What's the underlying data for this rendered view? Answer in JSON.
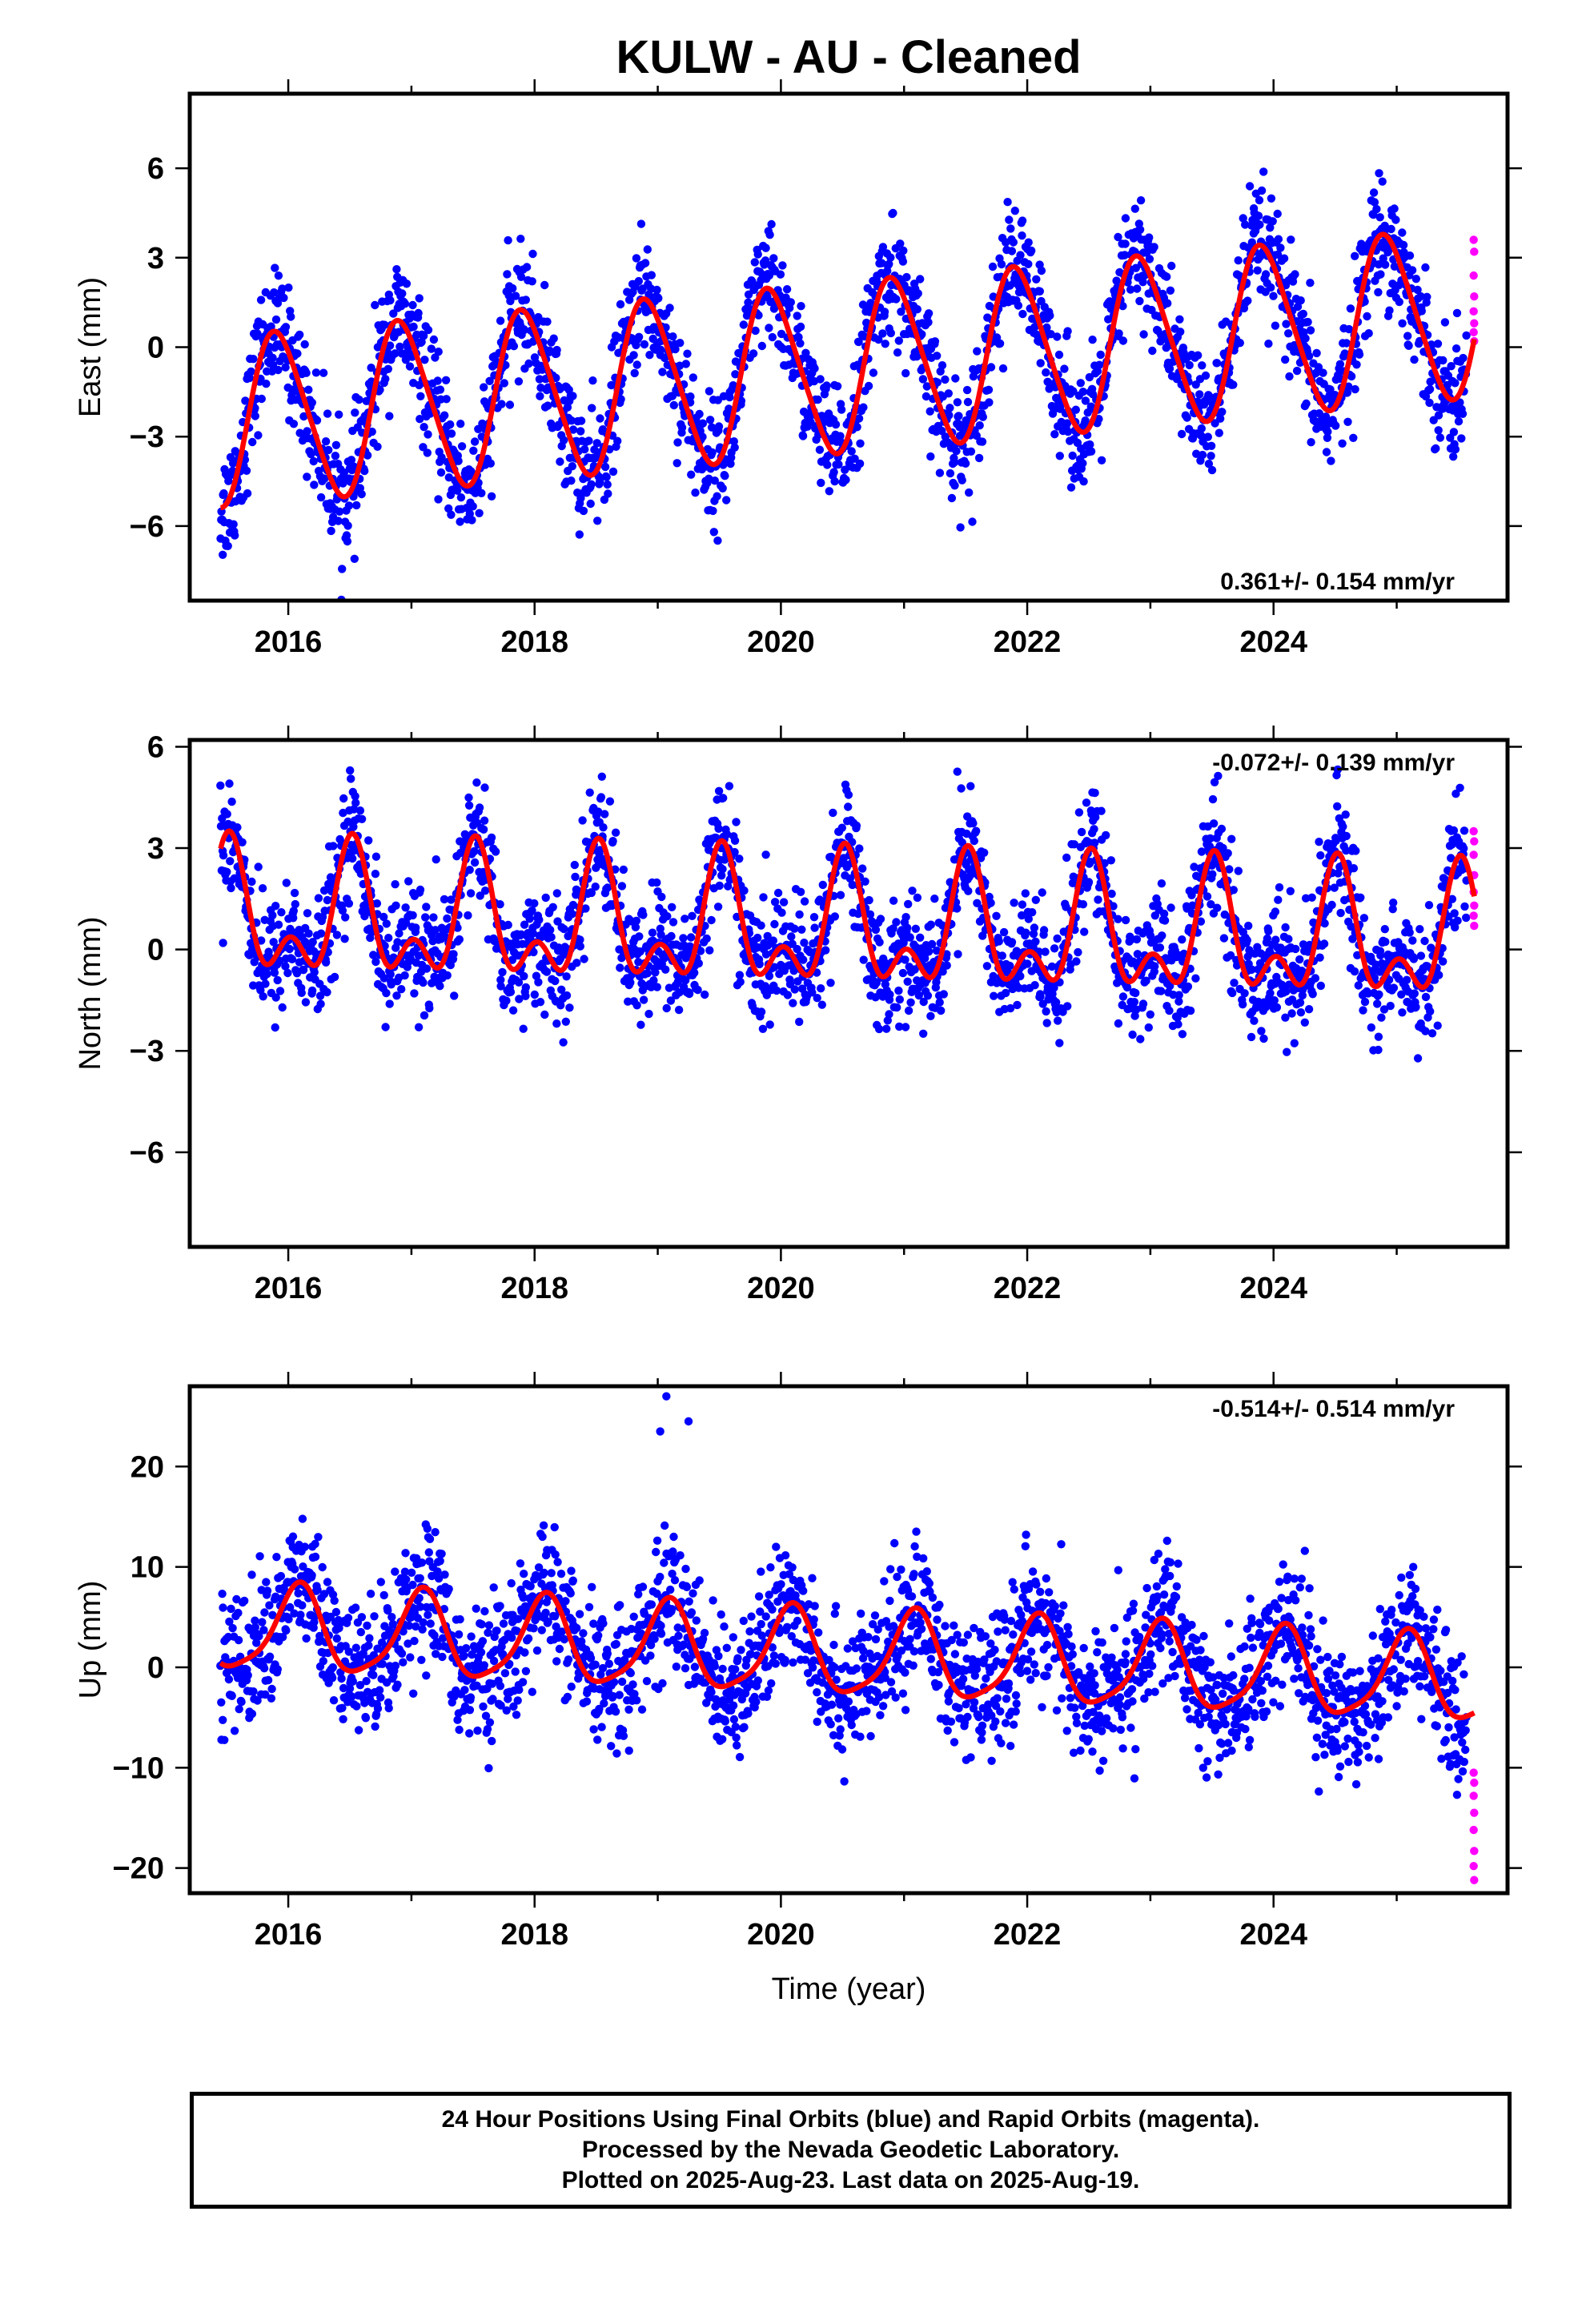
{
  "title": "KULW  - AU - Cleaned",
  "colors": {
    "final_orbits": "#0000ff",
    "rapid_orbits": "#ff00ff",
    "model_fit": "#ff0000",
    "frame": "#000000"
  },
  "footer": {
    "line1": "24 Hour Positions Using Final Orbits (blue) and Rapid Orbits (magenta).",
    "line2": "Processed by the Nevada Geodetic Laboratory.",
    "line3": "Plotted on 2025-Aug-23. Last data on 2025-Aug-19."
  },
  "chart_data": [
    {
      "type": "scatter",
      "panel": "east",
      "ylabel": "East (mm)",
      "xlabel": "",
      "xlim": [
        2015.2,
        2025.9
      ],
      "ylim": [
        -8.5,
        8.5
      ],
      "xticks": [
        2016,
        2018,
        2020,
        2022,
        2024
      ],
      "xtick_labels": [
        "2016",
        "2018",
        "2020",
        "2022",
        "2024"
      ],
      "yticks": [
        -6,
        -3,
        0,
        3,
        6
      ],
      "ytick_labels": [
        "−6",
        "−3",
        "0",
        "3",
        "6"
      ],
      "rate_label": "0.361+/- 0.154 mm/yr",
      "rate_label_position": "bottom-right",
      "start": 2015.45,
      "end": 2025.63,
      "model": {
        "offset": -0.7,
        "trend_mm_per_yr": 0.361,
        "annual_amp": 2.8,
        "annual_peak": 0.92,
        "semiannual_amp": 0.35,
        "semiannual_phase": 0.3
      },
      "noise_mm": 1.0,
      "rapid_orbit_values": [
        3.6,
        3.2,
        2.4,
        1.7,
        1.2,
        0.8,
        0.5,
        0.2
      ],
      "series": [
        {
          "name": "Final Orbits (blue)",
          "marker": "circle"
        },
        {
          "name": "Rapid Orbits (magenta)",
          "marker": "circle"
        },
        {
          "name": "Model fit",
          "marker": "line"
        }
      ]
    },
    {
      "type": "scatter",
      "panel": "north",
      "ylabel": "North (mm)",
      "xlabel": "",
      "xlim": [
        2015.2,
        2025.9
      ],
      "ylim": [
        -8.8,
        6.2
      ],
      "xticks": [
        2016,
        2018,
        2020,
        2022,
        2024
      ],
      "xtick_labels": [
        "2016",
        "2018",
        "2020",
        "2022",
        "2024"
      ],
      "yticks": [
        -6,
        -3,
        0,
        3,
        6
      ],
      "ytick_labels": [
        "−6",
        "−3",
        "0",
        "3",
        "6"
      ],
      "rate_label": "-0.072+/- 0.139 mm/yr",
      "rate_label_position": "top-right",
      "start": 2015.45,
      "end": 2025.63,
      "model": {
        "offset": 0.55,
        "trend_mm_per_yr": -0.072,
        "annual_amp": 1.55,
        "annual_peak": 0.52,
        "semiannual_amp": 1.05,
        "semiannual_phase": 0.02
      },
      "noise_mm": 0.9,
      "rapid_orbit_values": [
        3.5,
        3.2,
        2.8,
        2.2,
        1.7,
        1.3,
        1.0,
        0.7
      ],
      "series": [
        {
          "name": "Final Orbits (blue)",
          "marker": "circle"
        },
        {
          "name": "Rapid Orbits (magenta)",
          "marker": "circle"
        },
        {
          "name": "Model fit",
          "marker": "line"
        }
      ]
    },
    {
      "type": "scatter",
      "panel": "up",
      "ylabel": "Up (mm)",
      "xlabel": "Time (year)",
      "xlim": [
        2015.2,
        2025.9
      ],
      "ylim": [
        -22.5,
        28
      ],
      "xticks": [
        2016,
        2018,
        2020,
        2022,
        2024
      ],
      "xtick_labels": [
        "2016",
        "2018",
        "2020",
        "2022",
        "2024"
      ],
      "yticks": [
        -20,
        -10,
        0,
        10,
        20
      ],
      "ytick_labels": [
        "−20",
        "−10",
        "0",
        "10",
        "20"
      ],
      "rate_label": "-0.514+/- 0.514 mm/yr",
      "rate_label_position": "top-right",
      "start": 2015.45,
      "end": 2025.63,
      "model": {
        "offset": 1.2,
        "trend_mm_per_yr": -0.514,
        "annual_amp": 4.2,
        "annual_peak": 0.08,
        "semiannual_amp": 0.9,
        "semiannual_phase": 0.12
      },
      "noise_mm": 3.3,
      "rapid_orbit_values": [
        -10.5,
        -11.5,
        -12.8,
        -14.5,
        -16.2,
        -18.3,
        -19.8,
        -21.2
      ],
      "outliers": [
        [
          2019.07,
          27.0
        ],
        [
          2019.02,
          23.5
        ],
        [
          2019.25,
          24.5
        ]
      ],
      "series": [
        {
          "name": "Final Orbits (blue)",
          "marker": "circle"
        },
        {
          "name": "Rapid Orbits (magenta)",
          "marker": "circle"
        },
        {
          "name": "Model fit",
          "marker": "line"
        }
      ]
    }
  ]
}
